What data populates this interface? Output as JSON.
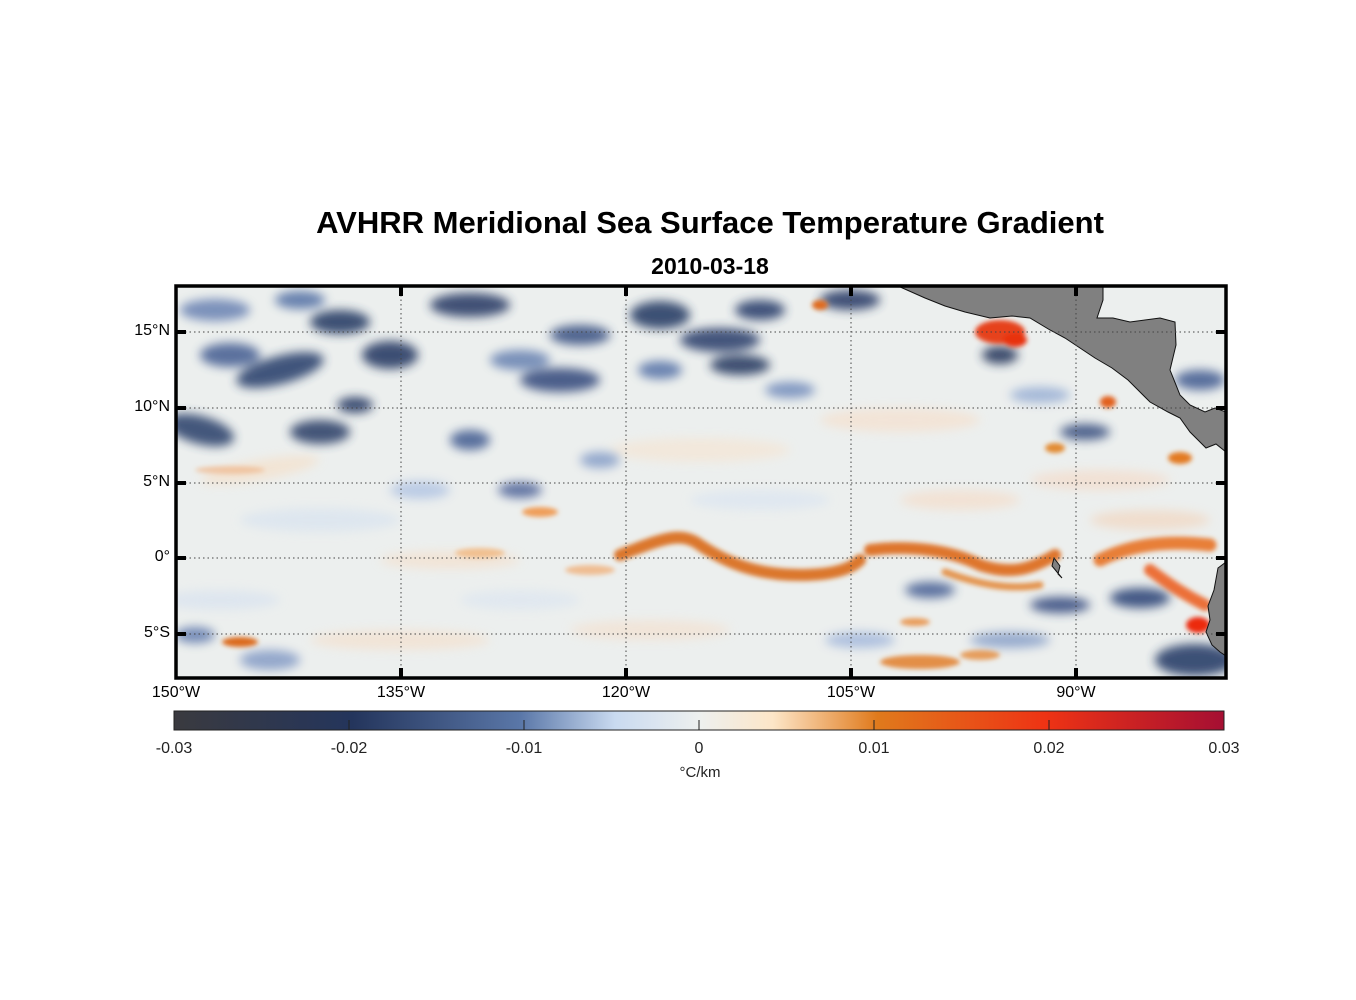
{
  "title": "AVHRR Meridional Sea Surface Temperature Gradient",
  "subtitle": "2010-03-18",
  "map": {
    "lon_range": [
      -150,
      -80
    ],
    "lat_range": [
      -8,
      18
    ],
    "lat_ticks": [
      {
        "value": 15,
        "label": "15°N"
      },
      {
        "value": 10,
        "label": "10°N"
      },
      {
        "value": 5,
        "label": "5°N"
      },
      {
        "value": 0,
        "label": "0°"
      },
      {
        "value": -5,
        "label": "5°S"
      }
    ],
    "lon_ticks": [
      {
        "value": -150,
        "label": "150°W"
      },
      {
        "value": -135,
        "label": "135°W"
      },
      {
        "value": -120,
        "label": "120°W"
      },
      {
        "value": -105,
        "label": "105°W"
      },
      {
        "value": -90,
        "label": "90°W"
      }
    ],
    "grid": "dotted",
    "land_color": "#808080"
  },
  "colorbar": {
    "range": [
      -0.03,
      0.03
    ],
    "ticks": [
      "-0.03",
      "-0.02",
      "-0.01",
      "0",
      "0.01",
      "0.02",
      "0.03"
    ],
    "unit": "°C/km",
    "colors": [
      "#3a3a3f",
      "#24355c",
      "#5a77a8",
      "#c9daf0",
      "#edf0ef",
      "#fde6c8",
      "#e07a1c",
      "#ee3314",
      "#a50f33"
    ]
  }
}
